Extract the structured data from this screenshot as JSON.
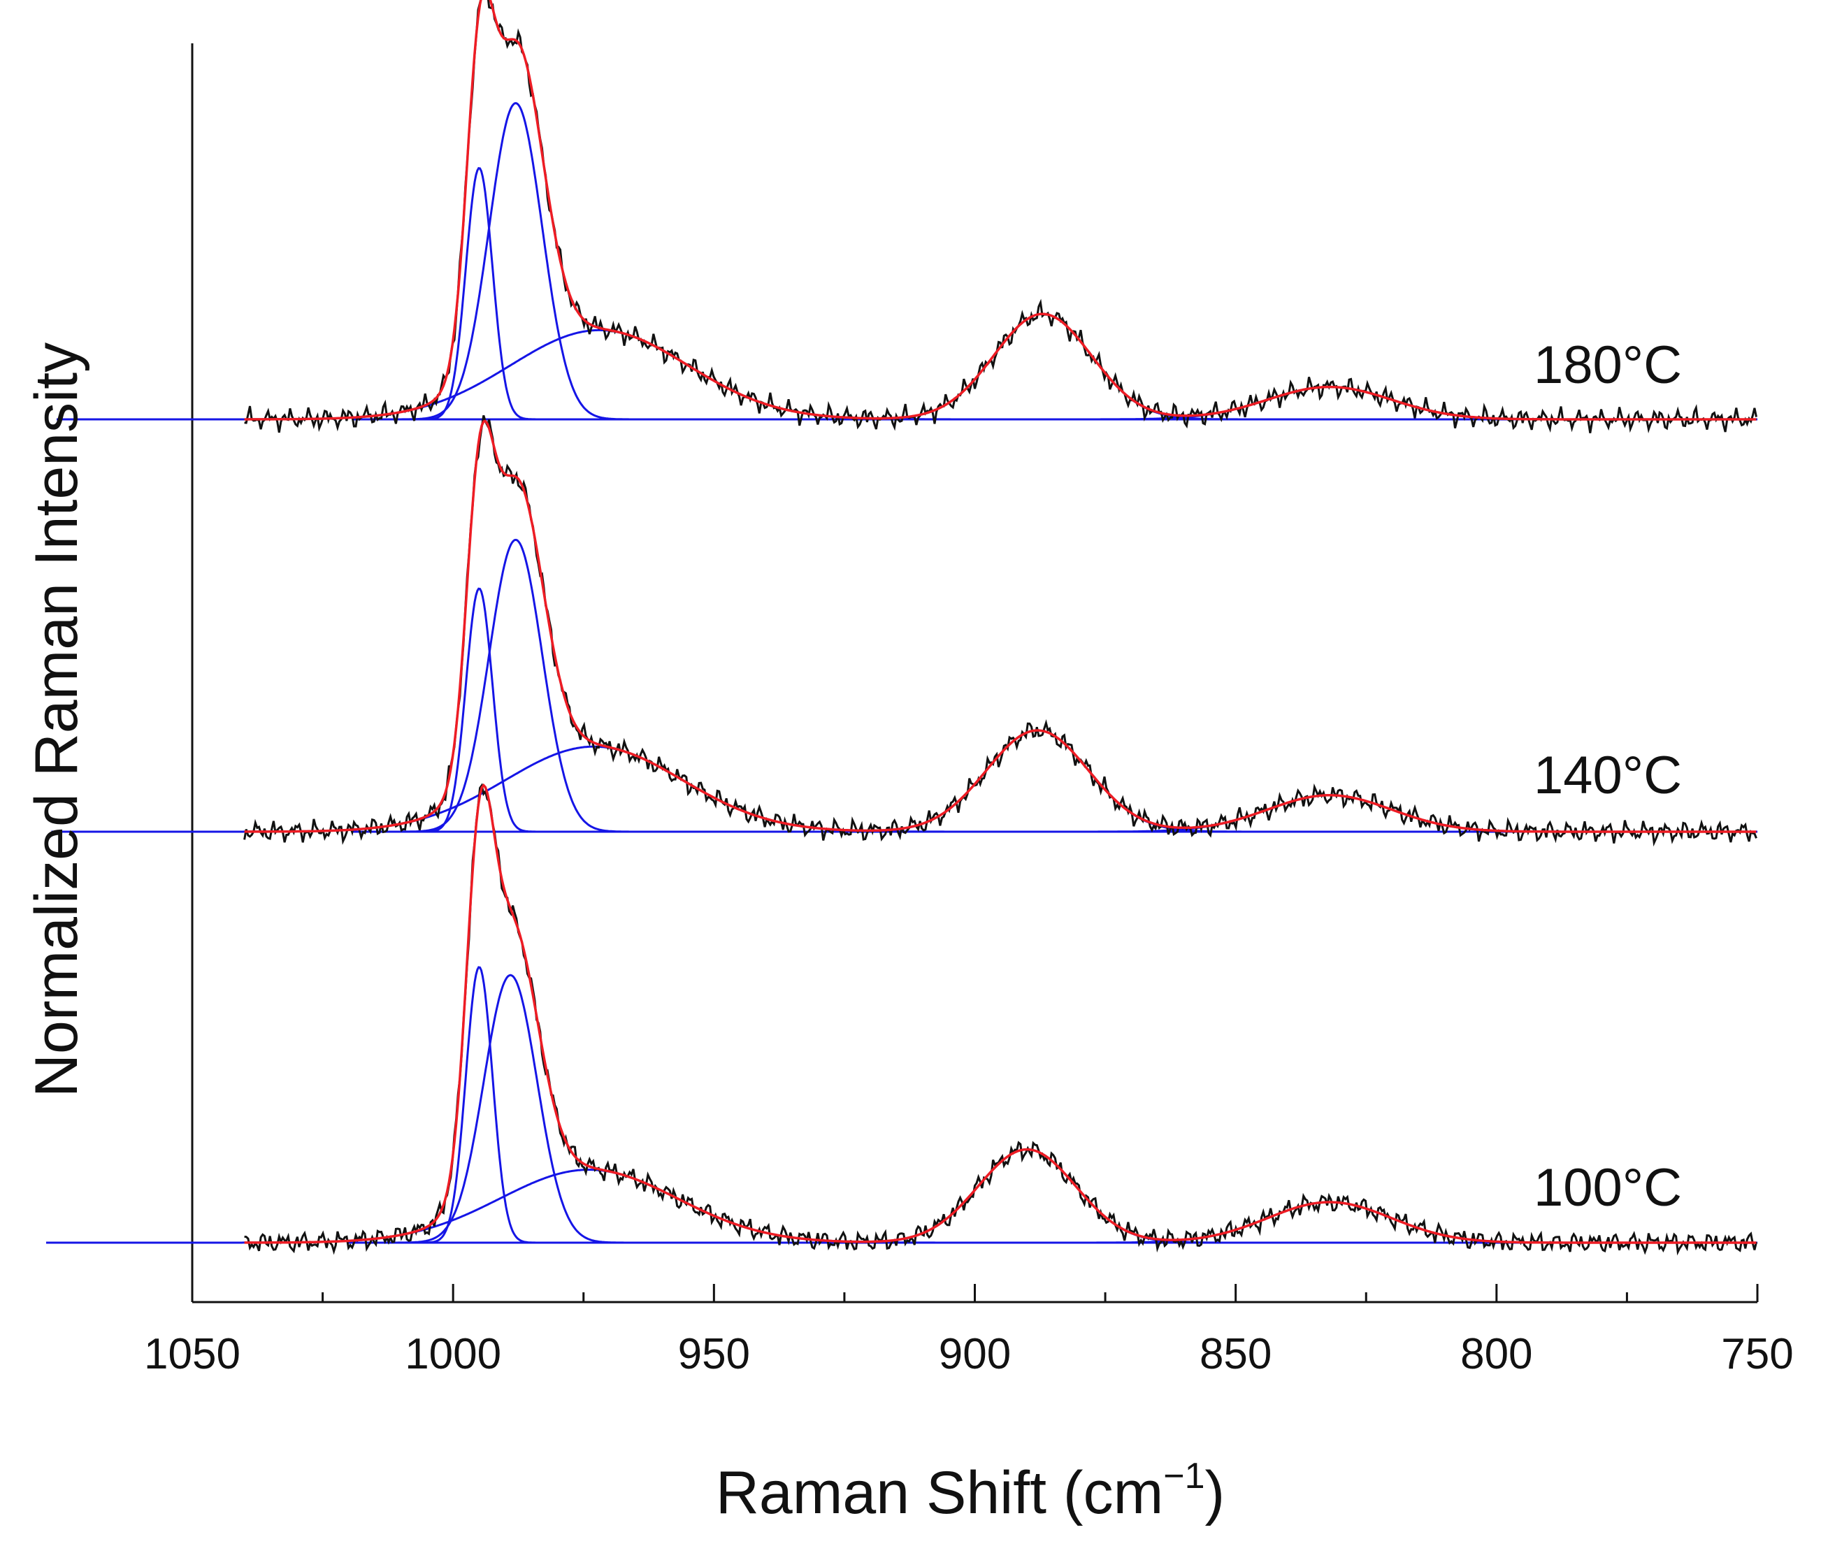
{
  "chart_data": {
    "type": "line",
    "title": "",
    "xlabel": "Raman Shift (cm⁻¹)",
    "xlabel_main": "Raman Shift (cm",
    "xlabel_sup": "−1",
    "xlabel_end": ")",
    "ylabel": "Normalized Raman Intensity",
    "xlim": [
      1050,
      750
    ],
    "x_reversed": true,
    "x_ticks": [
      1050,
      1000,
      950,
      900,
      850,
      800,
      750
    ],
    "x_minor_step": 25,
    "y_ticks_shown": false,
    "grid": false,
    "line_colors": {
      "measured": "#111111",
      "fit_envelope": "#ee1c24",
      "components": "#1515e6",
      "baseline": "#1515e6"
    },
    "spectra": [
      {
        "label": "180°C",
        "offset": 2.0,
        "components": [
          {
            "center": 995,
            "height": 0.62,
            "fwhm": 6
          },
          {
            "center": 988,
            "height": 0.78,
            "fwhm": 12
          },
          {
            "center": 972,
            "height": 0.22,
            "fwhm": 40
          },
          {
            "center": 887,
            "height": 0.26,
            "fwhm": 22
          },
          {
            "center": 832,
            "height": 0.08,
            "fwhm": 28
          }
        ]
      },
      {
        "label": "140°C",
        "offset": 1.0,
        "components": [
          {
            "center": 995,
            "height": 0.6,
            "fwhm": 6
          },
          {
            "center": 988,
            "height": 0.72,
            "fwhm": 12
          },
          {
            "center": 973,
            "height": 0.21,
            "fwhm": 40
          },
          {
            "center": 888,
            "height": 0.25,
            "fwhm": 23
          },
          {
            "center": 832,
            "height": 0.09,
            "fwhm": 28
          }
        ]
      },
      {
        "label": "100°C",
        "offset": 0.0,
        "components": [
          {
            "center": 995,
            "height": 0.68,
            "fwhm": 6
          },
          {
            "center": 989,
            "height": 0.66,
            "fwhm": 12
          },
          {
            "center": 974,
            "height": 0.18,
            "fwhm": 40
          },
          {
            "center": 890,
            "height": 0.23,
            "fwhm": 22
          },
          {
            "center": 832,
            "height": 0.1,
            "fwhm": 28
          }
        ]
      }
    ]
  }
}
